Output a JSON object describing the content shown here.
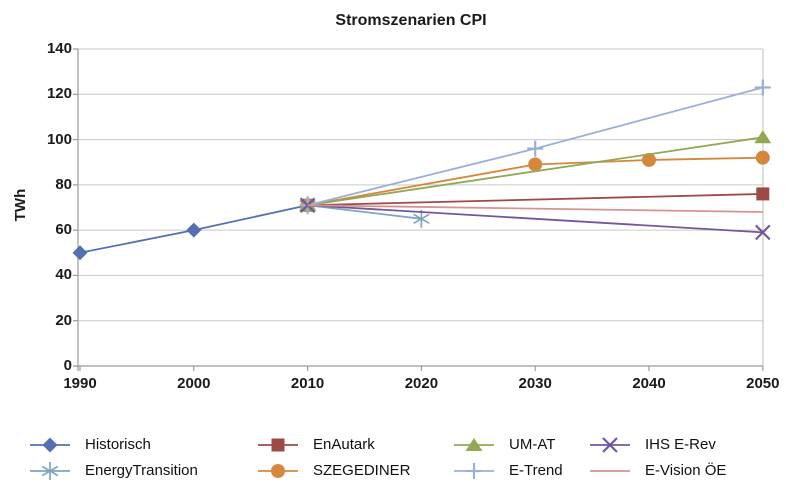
{
  "chart_data": {
    "type": "line",
    "title": "Stromszenarien CPI",
    "xlabel": "",
    "ylabel": "TWh",
    "x_ticks": [
      1990,
      2000,
      2010,
      2020,
      2030,
      2040,
      2050
    ],
    "xlim": [
      1990,
      2050
    ],
    "ylim": [
      0,
      140
    ],
    "y_tick_step": 20,
    "grid": "horizontal",
    "legend_position": "bottom",
    "series": [
      {
        "name": "Historisch",
        "color": "#5470B2",
        "marker": "diamond",
        "points": [
          [
            1990,
            50
          ],
          [
            2000,
            60
          ],
          [
            2010,
            71
          ]
        ]
      },
      {
        "name": "EnergyTransition",
        "color": "#7FA6BE",
        "marker": "star",
        "points": [
          [
            2010,
            71
          ],
          [
            2020,
            65
          ]
        ]
      },
      {
        "name": "EnAutark",
        "color": "#9E4A44",
        "marker": "square",
        "points": [
          [
            2010,
            71
          ],
          [
            2050,
            76
          ]
        ]
      },
      {
        "name": "SZEGEDINER",
        "color": "#D5883C",
        "marker": "circle",
        "points": [
          [
            2010,
            71
          ],
          [
            2030,
            89
          ],
          [
            2040,
            91
          ],
          [
            2050,
            92
          ]
        ]
      },
      {
        "name": "UM-AT",
        "color": "#92A853",
        "marker": "triangle",
        "points": [
          [
            2010,
            71
          ],
          [
            2050,
            101
          ]
        ]
      },
      {
        "name": "E-Trend",
        "color": "#9BB0D8",
        "marker": "plus",
        "points": [
          [
            2010,
            71
          ],
          [
            2030,
            96
          ],
          [
            2050,
            123
          ]
        ]
      },
      {
        "name": "IHS E-Rev",
        "color": "#72579D",
        "marker": "x",
        "points": [
          [
            2010,
            71
          ],
          [
            2050,
            59
          ]
        ]
      },
      {
        "name": "E-Vision ÖE",
        "color": "#D59491",
        "marker": "none",
        "points": [
          [
            2010,
            71
          ],
          [
            2050,
            68
          ]
        ]
      }
    ],
    "legend_rows": [
      [
        "Historisch",
        "EnAutark",
        "UM-AT",
        "IHS E-Rev"
      ],
      [
        "EnergyTransition",
        "SZEGEDINER",
        "E-Trend",
        "E-Vision ÖE"
      ]
    ]
  },
  "colors": {
    "grid": "#C9C9C9",
    "axis": "#9B9B9B",
    "text": "#1A1A1A"
  }
}
